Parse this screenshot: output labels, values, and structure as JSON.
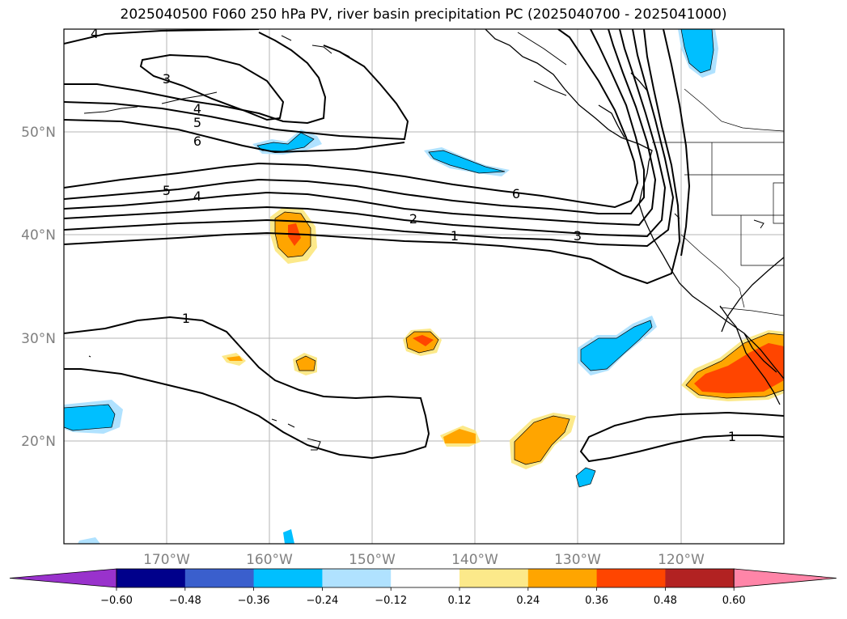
{
  "title": "2025040500 F060 250 hPa PV, river basin precipitation PC (2025040700 - 2025041000)",
  "latitude_labels": [
    "50°N",
    "40°N",
    "30°N",
    "20°N"
  ],
  "longitude_labels": [
    "170°W",
    "160°W",
    "150°W",
    "140°W",
    "130°W",
    "120°W"
  ],
  "colorbar": {
    "colors": [
      "#9932cc",
      "#00008b",
      "#3a5fcd",
      "#00bfff",
      "#b0e2ff",
      "#ffffff",
      "#fce98a",
      "#ffa500",
      "#ff4500",
      "#b22222",
      "#ff85a8"
    ],
    "tick_labels": [
      "−0.60",
      "−0.48",
      "−0.36",
      "−0.24",
      "−0.12",
      "0.12",
      "0.24",
      "0.36",
      "0.48",
      "0.60"
    ]
  },
  "contour_labels": [
    "4",
    "3",
    "4",
    "5",
    "6",
    "5",
    "4",
    "6",
    "2",
    "1",
    "3",
    "1",
    "1"
  ]
}
